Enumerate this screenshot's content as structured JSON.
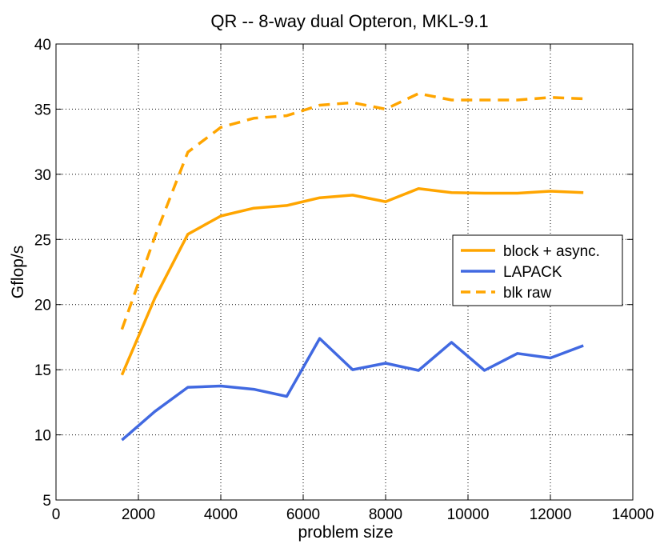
{
  "chart_data": {
    "type": "line",
    "title": "QR -- 8-way dual Opteron, MKL-9.1",
    "xlabel": "problem size",
    "ylabel": "Gflop/s",
    "xlim": [
      0,
      14000
    ],
    "ylim": [
      5,
      40
    ],
    "xticks": [
      0,
      2000,
      4000,
      6000,
      8000,
      10000,
      12000,
      14000
    ],
    "yticks": [
      5,
      10,
      15,
      20,
      25,
      30,
      35,
      40
    ],
    "grid": true,
    "legend_position": "right",
    "x": [
      1600,
      2400,
      3200,
      4000,
      4800,
      5600,
      6400,
      7200,
      8000,
      8800,
      9600,
      10400,
      11200,
      12000,
      12800
    ],
    "series": [
      {
        "name": "block + async.",
        "color": "#ffa500",
        "style": "solid",
        "values": [
          14.6,
          20.5,
          25.4,
          26.8,
          27.4,
          27.6,
          28.2,
          28.4,
          27.9,
          28.9,
          28.6,
          28.55,
          28.55,
          28.7,
          28.6
        ]
      },
      {
        "name": "LAPACK",
        "color": "#4169e1",
        "style": "solid",
        "values": [
          9.6,
          11.8,
          13.65,
          13.75,
          13.5,
          12.95,
          17.4,
          15.0,
          15.5,
          14.95,
          17.1,
          14.95,
          16.25,
          15.9,
          16.85
        ]
      },
      {
        "name": "blk raw",
        "color": "#ffa500",
        "style": "dashed",
        "values": [
          18.1,
          25.2,
          31.7,
          33.6,
          34.3,
          34.5,
          35.3,
          35.5,
          35.0,
          36.2,
          35.7,
          35.7,
          35.7,
          35.9,
          35.8
        ]
      }
    ]
  }
}
